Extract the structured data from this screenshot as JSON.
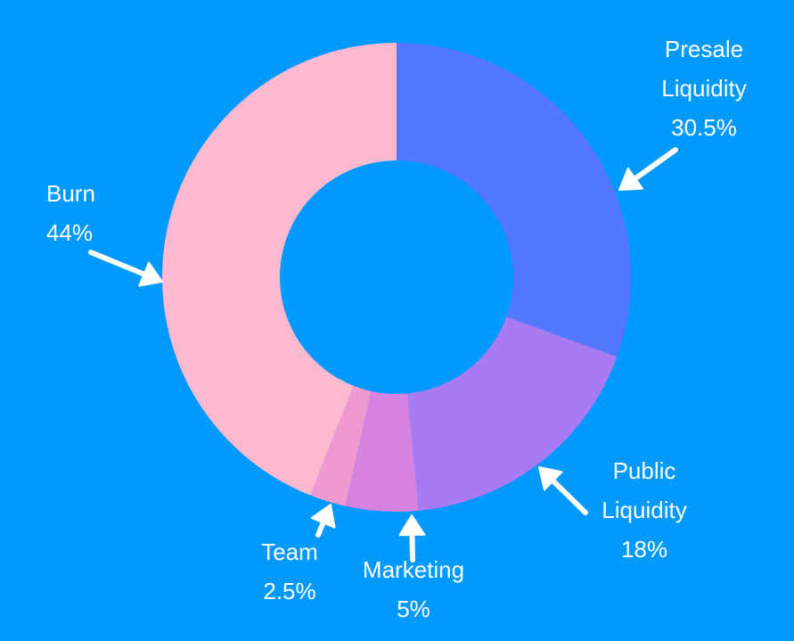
{
  "chart_data": {
    "type": "pie",
    "variant": "donut",
    "title": "",
    "slices": [
      {
        "label": "Presale Liquidity",
        "label_lines": [
          "Presale",
          "Liquidity"
        ],
        "value_label": "30.5%",
        "value": 30.5,
        "color": "#5378fe"
      },
      {
        "label": "Public Liquidity",
        "label_lines": [
          "Public",
          "Liquidity"
        ],
        "value_label": "18%",
        "value": 18,
        "color": "#a97bf2"
      },
      {
        "label": "Marketing",
        "label_lines": [
          "Marketing"
        ],
        "value_label": "5%",
        "value": 5,
        "color": "#d683e0"
      },
      {
        "label": "Team",
        "label_lines": [
          "Team"
        ],
        "value_label": "2.5%",
        "value": 2.5,
        "color": "#ef99d0"
      },
      {
        "label": "Burn",
        "label_lines": [
          "Burn"
        ],
        "value_label": "44%",
        "value": 44,
        "color": "#fdb9d0"
      }
    ],
    "start_angle": "12 o'clock",
    "direction": "clockwise",
    "background_color": "#0299fd",
    "label_color": "#ffffff"
  }
}
